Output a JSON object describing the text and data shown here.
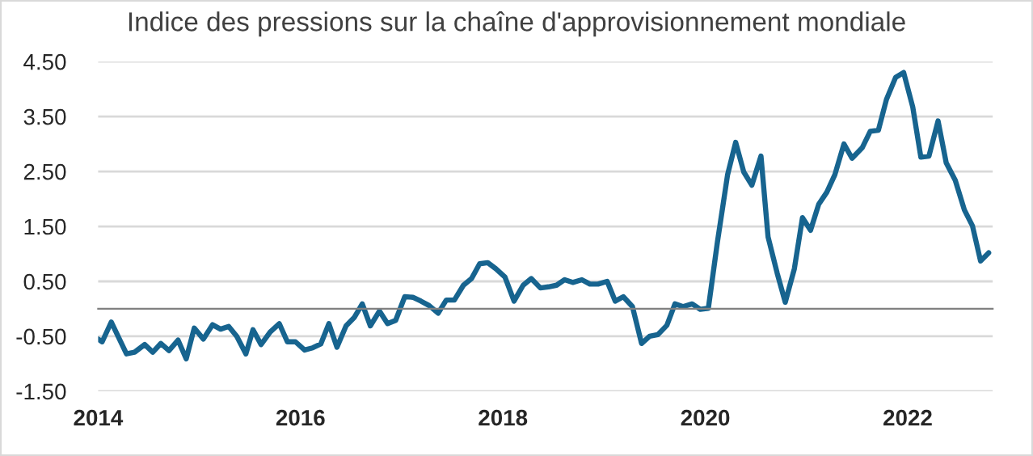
{
  "chart_data": {
    "type": "line",
    "title": "Indice des pressions sur la chaîne d'approvisionnement mondiale",
    "x": [
      2014.0,
      2014.04,
      2014.13,
      2014.28,
      2014.36,
      2014.46,
      2014.54,
      2014.62,
      2014.7,
      2014.79,
      2014.87,
      2014.95,
      2015.04,
      2015.13,
      2015.21,
      2015.29,
      2015.37,
      2015.46,
      2015.53,
      2015.61,
      2015.7,
      2015.79,
      2015.87,
      2015.95,
      2016.04,
      2016.12,
      2016.2,
      2016.28,
      2016.36,
      2016.45,
      2016.53,
      2016.61,
      2016.69,
      2016.78,
      2016.86,
      2016.94,
      2017.03,
      2017.11,
      2017.19,
      2017.27,
      2017.36,
      2017.44,
      2017.52,
      2017.61,
      2017.69,
      2017.77,
      2017.85,
      2017.93,
      2018.02,
      2018.11,
      2018.2,
      2018.28,
      2018.37,
      2018.45,
      2018.53,
      2018.61,
      2018.69,
      2018.78,
      2018.86,
      2018.94,
      2019.03,
      2019.11,
      2019.19,
      2019.28,
      2019.37,
      2019.45,
      2019.53,
      2019.62,
      2019.7,
      2019.78,
      2019.87,
      2019.95,
      2020.03,
      2020.12,
      2020.22,
      2020.3,
      2020.38,
      2020.46,
      2020.55,
      2020.62,
      2020.71,
      2020.79,
      2020.88,
      2020.96,
      2021.04,
      2021.12,
      2021.2,
      2021.28,
      2021.37,
      2021.45,
      2021.55,
      2021.63,
      2021.71,
      2021.79,
      2021.88,
      2021.96,
      2022.05,
      2022.13,
      2022.21,
      2022.3,
      2022.38,
      2022.47,
      2022.56,
      2022.64,
      2022.72,
      2022.8
    ],
    "series": [
      {
        "color": "#17648f",
        "values": [
          -0.55,
          -0.6,
          -0.24,
          -0.82,
          -0.79,
          -0.65,
          -0.79,
          -0.63,
          -0.76,
          -0.57,
          -0.91,
          -0.35,
          -0.55,
          -0.29,
          -0.37,
          -0.32,
          -0.5,
          -0.82,
          -0.38,
          -0.65,
          -0.42,
          -0.27,
          -0.6,
          -0.6,
          -0.75,
          -0.71,
          -0.64,
          -0.27,
          -0.7,
          -0.31,
          -0.16,
          0.09,
          -0.31,
          -0.04,
          -0.27,
          -0.21,
          0.22,
          0.21,
          0.14,
          0.06,
          -0.08,
          0.16,
          0.16,
          0.43,
          0.55,
          0.82,
          0.84,
          0.73,
          0.58,
          0.14,
          0.43,
          0.55,
          0.38,
          0.4,
          0.43,
          0.53,
          0.48,
          0.53,
          0.45,
          0.45,
          0.5,
          0.14,
          0.22,
          0.04,
          -0.63,
          -0.5,
          -0.47,
          -0.3,
          0.09,
          0.04,
          0.09,
          -0.01,
          0.01,
          1.22,
          2.44,
          3.03,
          2.49,
          2.25,
          2.78,
          1.31,
          0.65,
          0.12,
          0.73,
          1.66,
          1.43,
          1.9,
          2.12,
          2.44,
          3.0,
          2.74,
          2.93,
          3.23,
          3.25,
          3.81,
          4.21,
          4.3,
          3.67,
          2.76,
          2.78,
          3.42,
          2.66,
          2.34,
          1.8,
          1.51,
          0.87,
          1.02
        ]
      }
    ],
    "xlim": [
      2014,
      2022.84
    ],
    "xticks": [
      2014,
      2016,
      2018,
      2020,
      2022
    ],
    "ylim": [
      -1.5,
      4.5
    ],
    "yticks": [
      {
        "value": -1.5,
        "label": "-1.50"
      },
      {
        "value": -0.5,
        "label": "-0.50"
      },
      {
        "value": 0.5,
        "label": "0.50"
      },
      {
        "value": 1.5,
        "label": "1.50"
      },
      {
        "value": 2.5,
        "label": "2.50"
      },
      {
        "value": 3.5,
        "label": "3.50"
      },
      {
        "value": 4.5,
        "label": "4.50"
      }
    ],
    "grid": "y",
    "legend": false,
    "marker": "none",
    "line_style": "solid"
  }
}
